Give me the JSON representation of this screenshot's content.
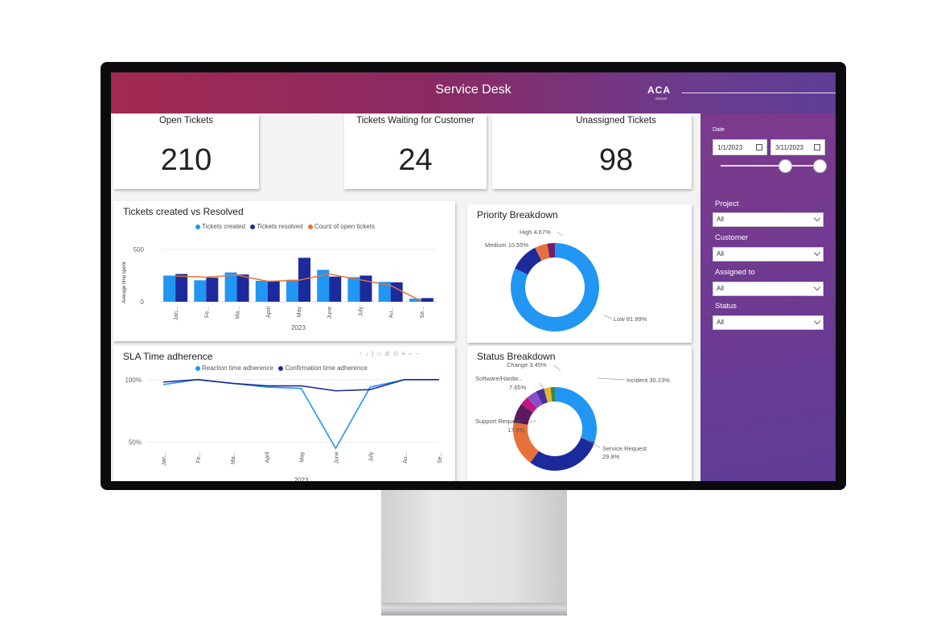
{
  "header": {
    "title": "Service Desk",
    "logo": "ACA",
    "logo_sub": "GROUP"
  },
  "kpis": [
    {
      "title": "Open Tickets",
      "value": "210"
    },
    {
      "title": "Tickets Waiting for Customer",
      "value": "24"
    },
    {
      "title": "Unassigned Tickets",
      "value": "98"
    }
  ],
  "filters": {
    "date_label": "Date",
    "date_from": "1/1/2023",
    "date_to": "3/11/2023",
    "project_label": "Project",
    "project_value": "All",
    "customer_label": "Customer",
    "customer_value": "All",
    "assigned_label": "Assigned to",
    "assigned_value": "All",
    "status_label": "Status",
    "status_value": "All"
  },
  "colors": {
    "blue": "#2196f3",
    "navy": "#1c2a9c",
    "orange": "#e8703a",
    "purple": "#5f3c96"
  },
  "chart_data": [
    {
      "type": "bar",
      "title": "Tickets created vs Resolved",
      "xlabel": "2023",
      "ylabel": "Average time spent",
      "categories": [
        "Jan...",
        "Fe...",
        "Ma...",
        "April",
        "May",
        "June",
        "July",
        "Au...",
        "Se..."
      ],
      "ylim": [
        0,
        500
      ],
      "yticks": [
        "500",
        "0"
      ],
      "series": [
        {
          "name": "Tickets created",
          "kind": "bar",
          "values": [
            250,
            205,
            280,
            200,
            210,
            305,
            235,
            190,
            30
          ]
        },
        {
          "name": "Tickets resolved",
          "kind": "bar",
          "values": [
            265,
            230,
            260,
            195,
            420,
            240,
            250,
            185,
            35
          ]
        },
        {
          "name": "Count of open tickets",
          "kind": "line",
          "values": [
            245,
            235,
            255,
            195,
            205,
            265,
            210,
            155,
            5
          ]
        }
      ],
      "legend": "top"
    },
    {
      "type": "pie",
      "title": "Priority Breakdown",
      "slices": [
        {
          "label": "Low",
          "value": 81.99,
          "text": "Low 81.99%"
        },
        {
          "label": "Medium",
          "value": 10.55,
          "text": "Medium 10.55%"
        },
        {
          "label": "High",
          "value": 4.67,
          "text": "High 4.67%"
        },
        {
          "label": "Other",
          "value": 2.79,
          "text": ""
        }
      ]
    },
    {
      "type": "line",
      "title": "SLA Time adherence",
      "xlabel": "2023",
      "categories": [
        "Jan...",
        "Fe...",
        "Ma...",
        "April",
        "May",
        "June",
        "July",
        "Au...",
        "Se..."
      ],
      "ylim": [
        40,
        105
      ],
      "yticks": [
        "100%",
        "50%"
      ],
      "series": [
        {
          "name": "Reaction time adherence",
          "values": [
            96,
            100,
            97,
            94,
            93,
            45,
            94,
            100,
            100
          ]
        },
        {
          "name": "Confirmation time adherence",
          "values": [
            98,
            100,
            97,
            95,
            95,
            91,
            92,
            100,
            100
          ]
        }
      ],
      "legend": "top"
    },
    {
      "type": "pie",
      "title": "Status Breakdown",
      "slices": [
        {
          "label": "Incident",
          "value": 30.23,
          "text": "Incident 30.23%"
        },
        {
          "label": "Service Request",
          "value": 29.8,
          "text": "Service Request",
          "text2": "29.8%"
        },
        {
          "label": "Support Request",
          "value": 17.4,
          "text": "Support Request",
          "text2": "17.4%"
        },
        {
          "label": "Software/Hardw...",
          "value": 7.65,
          "text": "Software/Hardw...",
          "text2": "7.65%"
        },
        {
          "label": "Change",
          "value": 3.45,
          "text": "Change 3.45%"
        },
        {
          "label": "Other1",
          "value": 4.0,
          "text": ""
        },
        {
          "label": "Other2",
          "value": 3.2,
          "text": ""
        },
        {
          "label": "Other3",
          "value": 2.6,
          "text": ""
        },
        {
          "label": "Other4",
          "value": 1.67,
          "text": ""
        }
      ]
    }
  ]
}
